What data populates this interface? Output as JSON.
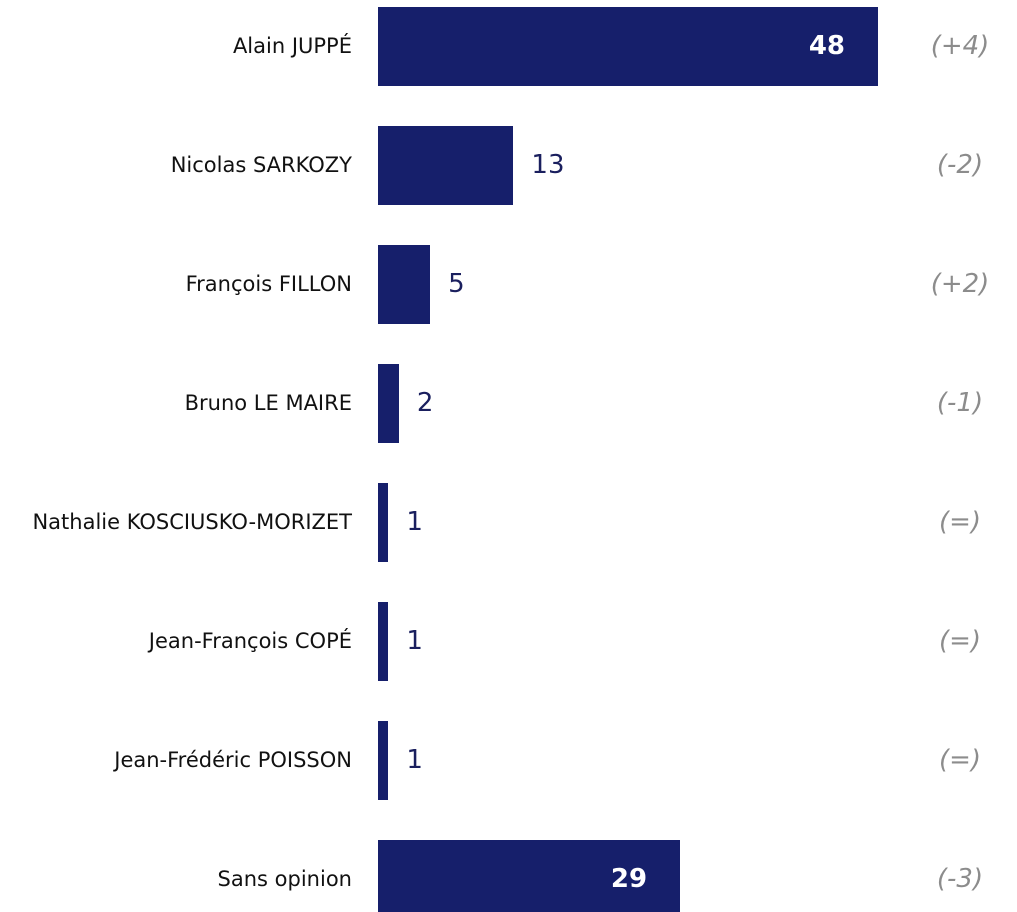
{
  "chart_data": {
    "type": "bar",
    "orientation": "horizontal",
    "color": "#161f6b",
    "categories": [
      "Alain JUPPÉ",
      "Nicolas SARKOZY",
      "François FILLON",
      "Bruno LE MAIRE",
      "Nathalie KOSCIUSKO-MORIZET",
      "Jean-François COPÉ",
      "Jean-Frédéric POISSON",
      "Sans opinion"
    ],
    "values": [
      48,
      13,
      5,
      2,
      1,
      1,
      1,
      29
    ],
    "changes": [
      "(+4)",
      "(-2)",
      "(+2)",
      "(-1)",
      "(=)",
      "(=)",
      "(=)",
      "(-3)"
    ]
  }
}
